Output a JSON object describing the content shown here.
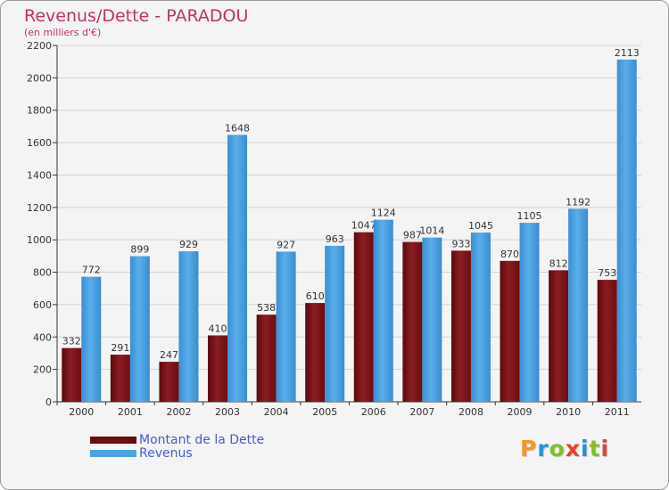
{
  "chart_data": {
    "type": "bar",
    "title": "Revenus/Dette - PARADOU",
    "subtitle": "(en milliers d'€)",
    "xlabel": "",
    "ylabel": "",
    "ylim": [
      0,
      2200
    ],
    "y_ticks": [
      "0",
      "200",
      "400",
      "600",
      "800",
      "1000",
      "1200",
      "1400",
      "1600",
      "1800",
      "2000",
      "2200"
    ],
    "grid": true,
    "legend_position": "bottom-left",
    "categories": [
      "2000",
      "2001",
      "2002",
      "2003",
      "2004",
      "2005",
      "2006",
      "2007",
      "2008",
      "2009",
      "2010",
      "2011"
    ],
    "series": [
      {
        "name": "Montant de la Dette",
        "color": "#7a1418",
        "values": [
          332,
          291,
          247,
          410,
          538,
          610,
          1047,
          987,
          933,
          870,
          812,
          753
        ]
      },
      {
        "name": "Revenus",
        "color": "#4ca3e6",
        "values": [
          772,
          899,
          929,
          1648,
          927,
          963,
          1124,
          1014,
          1045,
          1105,
          1192,
          2113
        ]
      }
    ]
  },
  "legend": {
    "items": [
      {
        "label": "Montant de la Dette",
        "color": "#6b0d12"
      },
      {
        "label": "Revenus",
        "color": "#4ca3e6"
      }
    ]
  },
  "logo": {
    "letters": [
      "P",
      "r",
      "o",
      "x",
      "i",
      "t",
      "i"
    ],
    "colors": [
      "#f39a1c",
      "#2c8fd6",
      "#7fbf2a",
      "#e8402f",
      "#2c8fd6",
      "#7fbf2a",
      "#e8402f"
    ]
  }
}
